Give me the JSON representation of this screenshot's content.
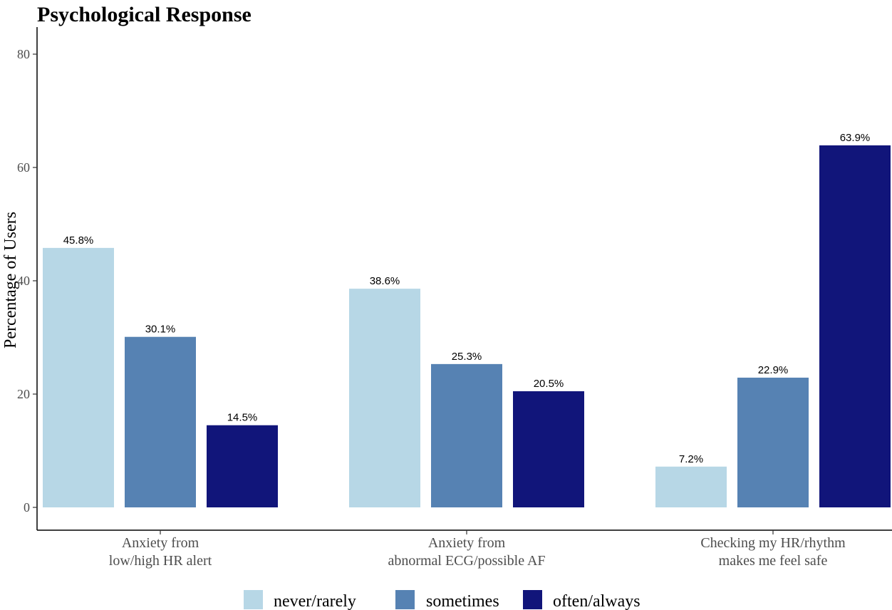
{
  "chart_data": {
    "type": "bar",
    "title": "Psychological Response",
    "xlabel": "",
    "ylabel": "Percentage of Users",
    "ylim": [
      0,
      85
    ],
    "yticks": [
      0,
      20,
      40,
      60,
      80
    ],
    "categories": [
      [
        "Anxiety from",
        "low/high HR alert"
      ],
      [
        "Anxiety from",
        "abnormal ECG/possible AF"
      ],
      [
        "Checking my HR/rhythm",
        "makes me feel safe"
      ]
    ],
    "series": [
      {
        "name": "never/rarely",
        "color": "#b7d7e6",
        "values": [
          45.8,
          38.6,
          7.2
        ],
        "labels": [
          "45.8%",
          "38.6%",
          "7.2%"
        ]
      },
      {
        "name": "sometimes",
        "color": "#5682b3",
        "values": [
          30.1,
          25.3,
          22.9
        ],
        "labels": [
          "30.1%",
          "25.3%",
          "22.9%"
        ]
      },
      {
        "name": "often/always",
        "color": "#11157a",
        "values": [
          14.5,
          20.5,
          63.9
        ],
        "labels": [
          "14.5%",
          "20.5%",
          "63.9%"
        ]
      }
    ],
    "legend": "bottom",
    "grid": false
  }
}
